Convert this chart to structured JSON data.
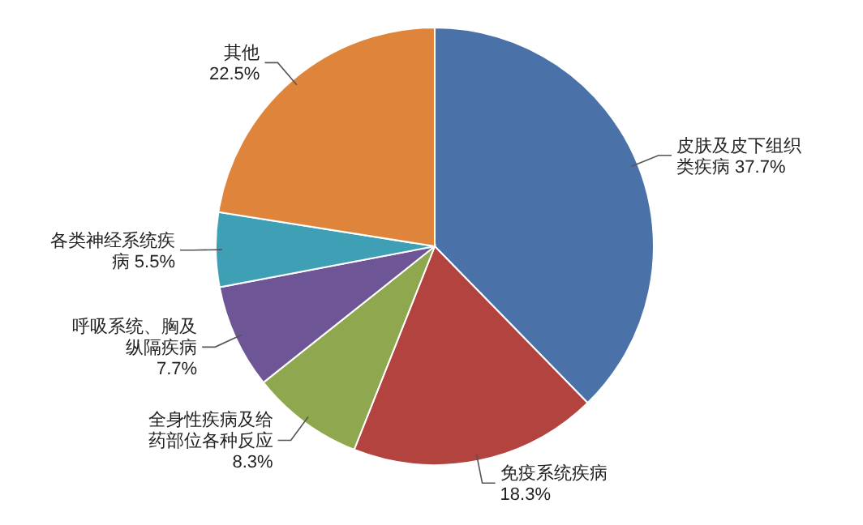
{
  "chart_data": {
    "type": "pie",
    "categories": [
      "皮肤及皮下组织类疾病",
      "免疫系统疾病",
      "全身性疾病及给药部位各种反应",
      "呼吸系统、胸及纵隔疾病",
      "各类神经系统疾病",
      "其他"
    ],
    "values": [
      37.7,
      18.3,
      8.3,
      7.7,
      5.5,
      22.5
    ],
    "value_labels": [
      "37.7%",
      "18.3%",
      "8.3%",
      "7.7%",
      "5.5%",
      "22.5%"
    ],
    "colors": [
      "#4a72a8",
      "#b2433f",
      "#8fa84f",
      "#6e5596",
      "#3f9fb5",
      "#de853b"
    ]
  }
}
